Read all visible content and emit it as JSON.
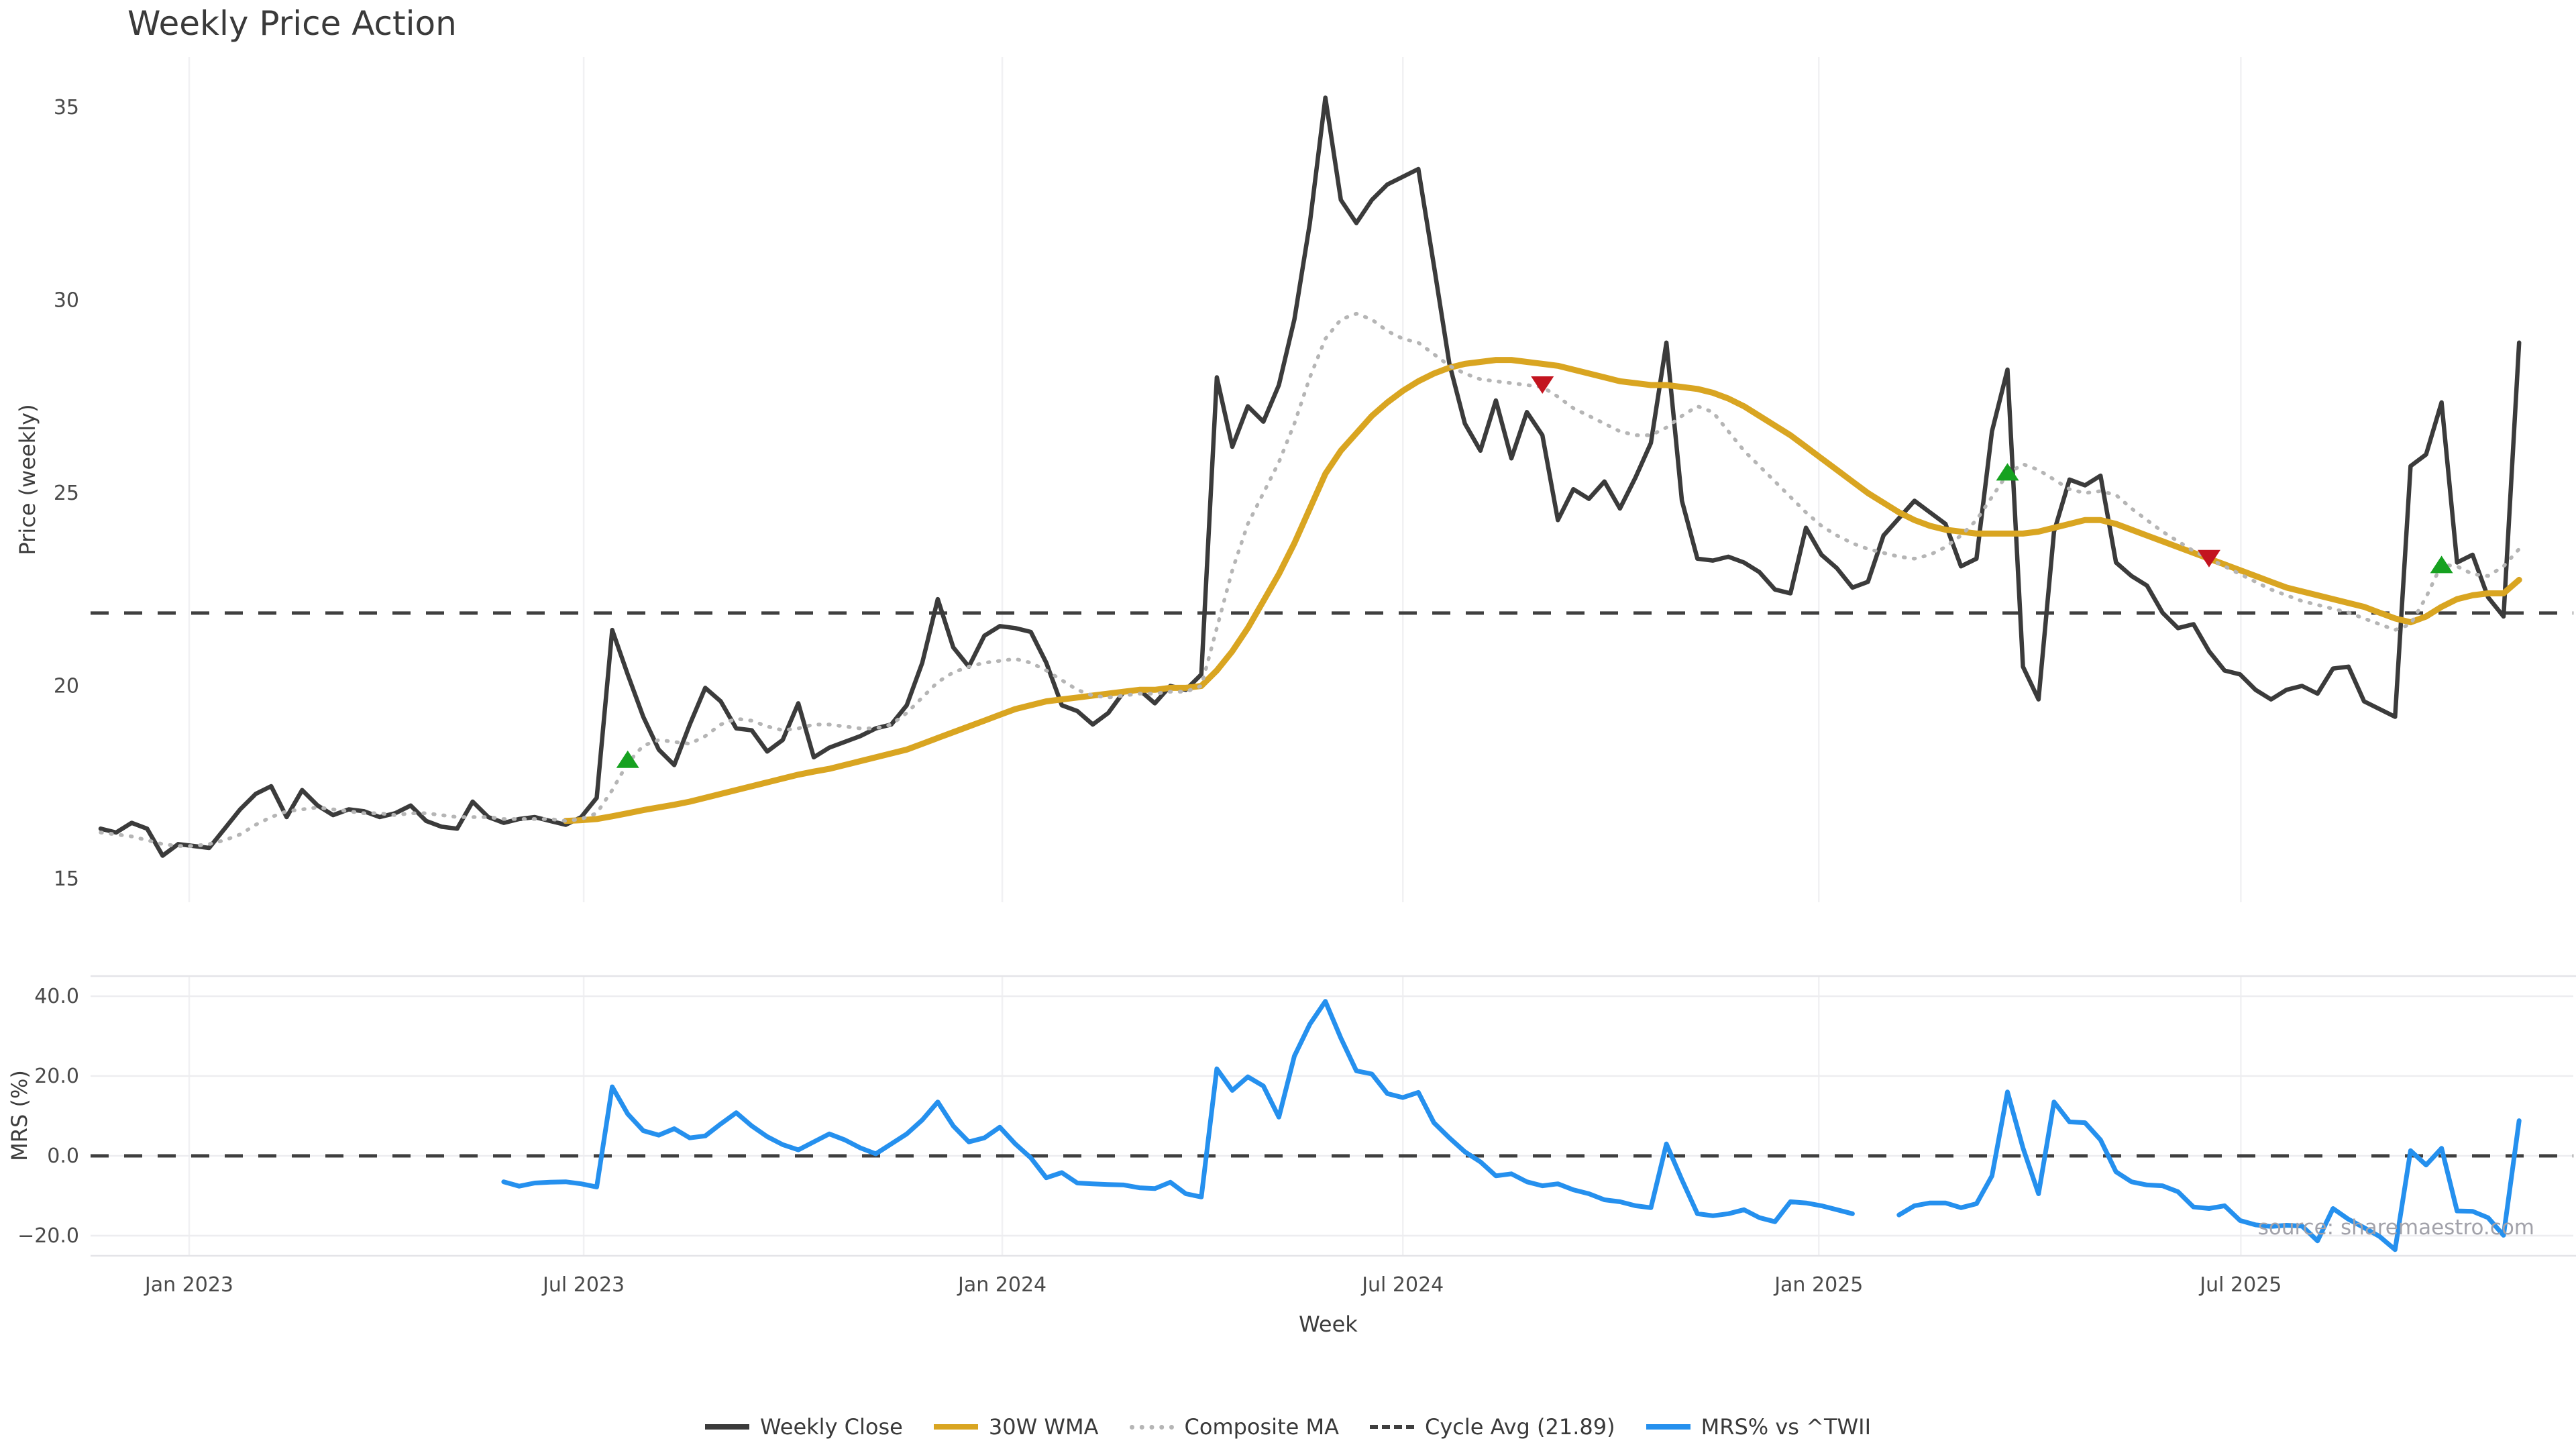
{
  "title": "Weekly Price Action",
  "xlabel": "Week",
  "source_note": "source: sharemaestro.com",
  "price_panel": {
    "ylabel": "Price (weekly)"
  },
  "mrs_panel": {
    "ylabel": "MRS (%)"
  },
  "colors": {
    "weekly_close": "#3b3b3b",
    "wma30": "#d9a521",
    "composite_ma": "#b5b5b5",
    "cycle_avg": "#3f3f3f",
    "mrs_line": "#2590ee",
    "buy_marker": "#16a120",
    "sell_marker": "#c3141f",
    "grid": "#f1f1f3",
    "panel_border": "#e4e4e8"
  },
  "legend": {
    "items": [
      {
        "label": "Weekly Close",
        "swatch": "solid",
        "color": "#3b3b3b"
      },
      {
        "label": "30W WMA",
        "swatch": "solid",
        "color": "#d9a521"
      },
      {
        "label": "Composite MA",
        "swatch": "dotted",
        "color": "#b5b5b5"
      },
      {
        "label": "Cycle Avg (21.89)",
        "swatch": "dashed",
        "color": "#3f3f3f"
      },
      {
        "label": "MRS% vs ^TWII",
        "swatch": "solid",
        "color": "#2590ee"
      }
    ]
  },
  "chart_data": [
    {
      "type": "line",
      "title": "Weekly Price Action",
      "ylabel": "Price (weekly)",
      "xlabel": "Week",
      "x_unit": "week_index",
      "weeks_total": 157,
      "ylim": [
        14.4,
        36.3
      ],
      "grid": "vertical-only",
      "cycle_avg": 21.89,
      "x_ticks": [
        {
          "pos": 5.71,
          "label": "Jan 2023"
        },
        {
          "pos": 31.16,
          "label": "Jul 2023"
        },
        {
          "pos": 58.16,
          "label": "Jan 2024"
        },
        {
          "pos": 84.0,
          "label": "Jul 2024"
        },
        {
          "pos": 110.83,
          "label": "Jan 2025"
        },
        {
          "pos": 138.05,
          "label": "Jul 2025"
        }
      ],
      "y_ticks": [
        {
          "v": 35,
          "label": "35"
        },
        {
          "v": 30,
          "label": "30"
        },
        {
          "v": 25,
          "label": "25"
        },
        {
          "v": 20,
          "label": "20"
        },
        {
          "v": 15,
          "label": "15"
        }
      ],
      "series": [
        {
          "name": "Weekly Close",
          "color": "#3b3b3b",
          "style": "solid",
          "width": 6.5,
          "start_week": 0,
          "values": [
            16.3,
            16.2,
            16.45,
            16.3,
            15.6,
            15.9,
            15.85,
            15.8,
            16.3,
            16.8,
            17.2,
            17.4,
            16.6,
            17.3,
            16.9,
            16.65,
            16.8,
            16.75,
            16.6,
            16.7,
            16.9,
            16.5,
            16.35,
            16.3,
            17.0,
            16.6,
            16.45,
            16.55,
            16.6,
            16.5,
            16.4,
            16.6,
            17.1,
            21.45,
            20.3,
            19.2,
            18.35,
            17.95,
            19.0,
            19.95,
            19.6,
            18.9,
            18.85,
            18.3,
            18.6,
            19.55,
            18.15,
            18.4,
            18.55,
            18.7,
            18.9,
            19.0,
            19.5,
            20.6,
            22.25,
            21.0,
            20.5,
            21.3,
            21.55,
            21.5,
            21.4,
            20.6,
            19.5,
            19.35,
            19.0,
            19.3,
            19.85,
            19.9,
            19.55,
            20.0,
            19.9,
            20.3,
            28.0,
            26.2,
            27.25,
            26.85,
            27.8,
            29.5,
            32.0,
            35.25,
            32.6,
            32.0,
            32.6,
            33.0,
            33.2,
            33.4,
            30.9,
            28.35,
            26.8,
            26.1,
            27.4,
            25.9,
            27.1,
            26.5,
            24.3,
            25.1,
            24.85,
            25.3,
            24.6,
            25.4,
            26.3,
            28.9,
            24.8,
            23.3,
            23.25,
            23.35,
            23.2,
            22.95,
            22.5,
            22.4,
            24.1,
            23.4,
            23.05,
            22.55,
            22.7,
            23.9,
            24.35,
            24.8,
            24.5,
            24.2,
            23.1,
            23.3,
            26.6,
            28.2,
            20.5,
            19.65,
            24.0,
            25.35,
            25.2,
            25.45,
            23.2,
            22.85,
            22.6,
            21.9,
            21.5,
            21.6,
            20.9,
            20.4,
            20.3,
            19.9,
            19.65,
            19.9,
            20.0,
            19.8,
            20.45,
            20.5,
            19.6,
            19.4,
            19.2,
            25.7,
            26.0,
            27.35,
            23.2,
            23.4,
            22.3,
            21.8,
            28.9
          ]
        },
        {
          "name": "30W WMA",
          "color": "#d9a521",
          "style": "solid",
          "width": 9,
          "start_week": 30,
          "values": [
            16.5,
            16.52,
            16.55,
            16.62,
            16.7,
            16.78,
            16.85,
            16.92,
            17.0,
            17.1,
            17.2,
            17.3,
            17.4,
            17.5,
            17.6,
            17.7,
            17.78,
            17.85,
            17.95,
            18.05,
            18.15,
            18.25,
            18.35,
            18.5,
            18.65,
            18.8,
            18.95,
            19.1,
            19.25,
            19.4,
            19.5,
            19.6,
            19.65,
            19.7,
            19.75,
            19.8,
            19.85,
            19.9,
            19.9,
            19.95,
            19.95,
            20.0,
            20.4,
            20.9,
            21.5,
            22.2,
            22.9,
            23.7,
            24.6,
            25.5,
            26.1,
            26.55,
            27.0,
            27.35,
            27.65,
            27.9,
            28.1,
            28.25,
            28.35,
            28.4,
            28.45,
            28.45,
            28.4,
            28.35,
            28.3,
            28.2,
            28.1,
            28.0,
            27.9,
            27.85,
            27.8,
            27.8,
            27.75,
            27.7,
            27.6,
            27.45,
            27.25,
            27.0,
            26.75,
            26.5,
            26.2,
            25.9,
            25.6,
            25.3,
            25.0,
            24.75,
            24.5,
            24.3,
            24.15,
            24.05,
            24.0,
            23.95,
            23.95,
            23.95,
            23.95,
            24.0,
            24.1,
            24.2,
            24.3,
            24.3,
            24.2,
            24.05,
            23.9,
            23.75,
            23.6,
            23.45,
            23.3,
            23.15,
            23.0,
            22.85,
            22.7,
            22.55,
            22.45,
            22.35,
            22.25,
            22.15,
            22.05,
            21.9,
            21.75,
            21.65,
            21.8,
            22.05,
            22.25,
            22.35,
            22.4,
            22.4,
            22.75
          ]
        },
        {
          "name": "Composite MA",
          "color": "#b5b5b5",
          "style": "dotted",
          "width": 5.5,
          "start_week": 0,
          "values": [
            16.2,
            16.15,
            16.1,
            16.0,
            15.9,
            15.85,
            15.85,
            15.9,
            16.0,
            16.15,
            16.4,
            16.6,
            16.75,
            16.8,
            16.85,
            16.8,
            16.75,
            16.7,
            16.7,
            16.65,
            16.7,
            16.7,
            16.65,
            16.6,
            16.6,
            16.6,
            16.55,
            16.55,
            16.55,
            16.55,
            16.5,
            16.55,
            16.7,
            17.3,
            18.0,
            18.45,
            18.6,
            18.55,
            18.5,
            18.7,
            19.0,
            19.15,
            19.1,
            18.95,
            18.85,
            18.9,
            19.0,
            19.0,
            18.95,
            18.9,
            18.9,
            19.0,
            19.3,
            19.7,
            20.1,
            20.35,
            20.5,
            20.6,
            20.65,
            20.7,
            20.6,
            20.4,
            20.15,
            19.9,
            19.75,
            19.7,
            19.75,
            19.8,
            19.8,
            19.85,
            19.85,
            20.0,
            21.5,
            23.0,
            24.2,
            25.0,
            25.8,
            26.8,
            28.0,
            29.0,
            29.5,
            29.65,
            29.5,
            29.2,
            29.0,
            28.9,
            28.6,
            28.3,
            28.1,
            27.95,
            27.9,
            27.85,
            27.8,
            27.75,
            27.5,
            27.2,
            27.0,
            26.8,
            26.6,
            26.5,
            26.5,
            26.7,
            27.0,
            27.25,
            27.1,
            26.6,
            26.1,
            25.7,
            25.3,
            24.9,
            24.5,
            24.15,
            23.9,
            23.7,
            23.55,
            23.45,
            23.35,
            23.3,
            23.4,
            23.6,
            23.9,
            24.3,
            24.9,
            25.5,
            25.75,
            25.6,
            25.35,
            25.1,
            25.0,
            25.05,
            24.95,
            24.6,
            24.3,
            24.0,
            23.75,
            23.5,
            23.3,
            23.1,
            22.9,
            22.7,
            22.5,
            22.35,
            22.2,
            22.1,
            22.0,
            21.9,
            21.75,
            21.6,
            21.45,
            21.6,
            22.3,
            23.15,
            23.1,
            22.9,
            22.85,
            23.1,
            23.55
          ]
        }
      ],
      "markers": {
        "buy_signals": [
          {
            "week": 34,
            "price": 18.1
          },
          {
            "week": 123,
            "price": 25.55
          },
          {
            "week": 151,
            "price": 23.15
          }
        ],
        "sell_signals": [
          {
            "week": 93,
            "price": 27.8
          },
          {
            "week": 136,
            "price": 23.3
          }
        ]
      }
    },
    {
      "type": "line",
      "ylabel": "MRS (%)",
      "ylim": [
        -25.5,
        45.5
      ],
      "grid": "both",
      "zero_line": "dashed",
      "y_ticks": [
        {
          "v": 40,
          "label": "40.0"
        },
        {
          "v": 20,
          "label": "20.0"
        },
        {
          "v": 0,
          "label": "0.0"
        },
        {
          "v": -20,
          "label": "−20.0"
        }
      ],
      "series": [
        {
          "name": "MRS% vs ^TWII",
          "color": "#2590ee",
          "style": "solid",
          "width": 7,
          "start_week": 26,
          "values": [
            -6.5,
            -7.6,
            -6.8,
            -6.6,
            -6.5,
            -7.0,
            -7.8,
            17.3,
            10.5,
            6.3,
            5.2,
            6.8,
            4.5,
            5.0,
            8.0,
            10.8,
            7.5,
            4.8,
            2.8,
            1.5,
            3.5,
            5.5,
            4.0,
            2.0,
            0.5,
            3.0,
            5.5,
            9.0,
            13.5,
            7.5,
            3.5,
            4.5,
            7.2,
            3.0,
            -0.5,
            -5.5,
            -4.2,
            -6.8,
            -7.0,
            -7.2,
            -7.3,
            -8.0,
            -8.2,
            -6.6,
            -9.5,
            -10.3,
            21.8,
            16.4,
            19.8,
            17.5,
            9.7,
            25.0,
            33.0,
            38.7,
            29.5,
            21.3,
            20.5,
            15.6,
            14.6,
            15.9,
            8.3,
            4.5,
            1.0,
            -1.5,
            -5.0,
            -4.5,
            -6.5,
            -7.5,
            -7.0,
            -8.5,
            -9.5,
            -11.0,
            -11.5,
            -12.5,
            -13.0,
            3.0,
            -6.0,
            -14.5,
            -15.0,
            -14.5,
            -13.5,
            -15.5,
            -16.5,
            -11.5,
            -11.8,
            -12.5,
            -13.5,
            -14.5,
            null,
            null,
            -14.8,
            -12.5,
            -11.8,
            -11.8,
            -13.0,
            -12.0,
            -5.0,
            16.0,
            2.0,
            -9.5,
            13.5,
            8.5,
            8.3,
            4.0,
            -4.0,
            -6.5,
            -7.3,
            -7.5,
            -9.0,
            -12.8,
            -13.2,
            -12.5,
            -16.2,
            -17.3,
            -17.7,
            -17.4,
            -17.6,
            -21.3,
            -13.2,
            -15.9,
            -18.0,
            -20.2,
            -23.5,
            1.3,
            -2.3,
            1.9,
            -13.8,
            -13.9,
            -15.5,
            -19.9,
            8.8
          ]
        }
      ]
    }
  ]
}
